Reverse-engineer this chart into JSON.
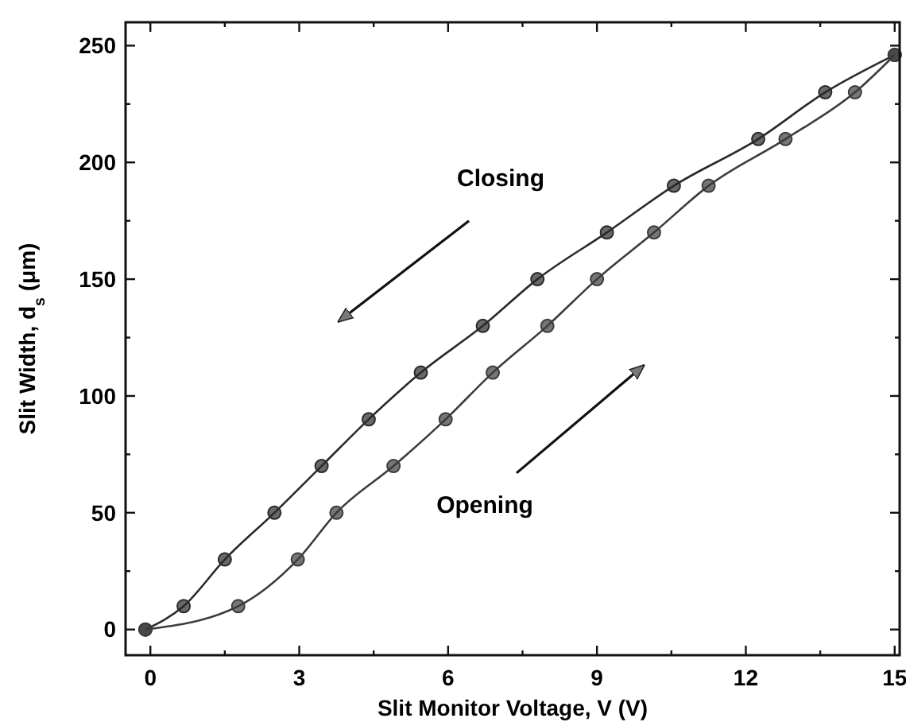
{
  "chart_data": {
    "type": "line",
    "xlabel": "Slit Monitor Voltage, V (V)",
    "ylabel": "Slit Width, d$_{s}$ (μm)",
    "annotations": [
      "Closing",
      "Opening"
    ],
    "xlim": [
      -0.5,
      15.1
    ],
    "ylim": [
      -11,
      260
    ],
    "xticks": [
      0,
      {
        "value": 1.5,
        "label": null
      },
      3,
      {
        "value": 4.5,
        "label": null
      },
      6,
      {
        "value": 7.5,
        "label": null
      },
      9,
      {
        "value": 10.5,
        "label": null
      },
      12,
      {
        "value": 13.5,
        "label": null
      },
      15
    ],
    "yticks": [
      0,
      {
        "value": 25,
        "label": null
      },
      50,
      {
        "value": 75,
        "label": null
      },
      100,
      {
        "value": 125,
        "label": null
      },
      150,
      {
        "value": 175,
        "label": null
      },
      200,
      {
        "value": 225,
        "label": null
      },
      250
    ],
    "marker": "circle",
    "line_style": "solid",
    "grid": false,
    "series": [
      {
        "color": "#2a2a2a",
        "x": [
          -0.1,
          0.67,
          1.5,
          2.5,
          3.45,
          4.4,
          5.45,
          6.7,
          7.8,
          9.2,
          10.55,
          12.25,
          13.6,
          15.0
        ],
        "values": [
          0,
          10,
          30,
          50,
          70,
          90,
          110,
          130,
          150,
          170,
          190,
          210,
          230,
          246
        ]
      },
      {
        "color": "#3c3c3c",
        "x": [
          -0.1,
          1.77,
          2.97,
          3.75,
          4.9,
          5.95,
          6.9,
          8.0,
          9.0,
          10.15,
          11.25,
          12.8,
          14.2,
          15.0
        ],
        "values": [
          0,
          10,
          30,
          50,
          70,
          90,
          110,
          130,
          150,
          170,
          190,
          210,
          230,
          246
        ]
      }
    ]
  }
}
